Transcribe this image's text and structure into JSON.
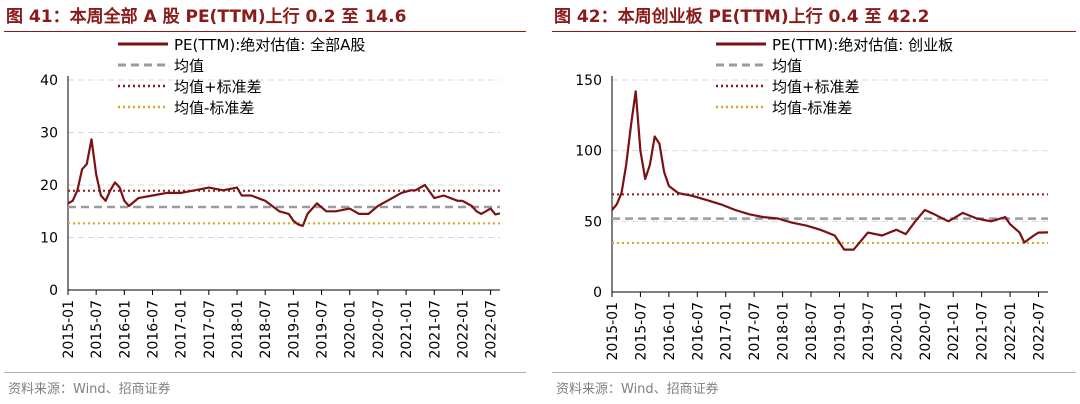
{
  "colors": {
    "pe_line": "#7b1113",
    "mean_line": "#9b9b9b",
    "plus_std_line": "#8b1a1a",
    "minus_std_line": "#d9a520",
    "grid": "#d9d9d9",
    "title": "#8b1a1a"
  },
  "charts": [
    {
      "title": "图 41：本周全部 A 股 PE(TTM)上行 0.2 至 14.6",
      "source": "资料来源：Wind、招商证券",
      "chart_data": {
        "type": "line",
        "title": "图 41：本周全部 A 股 PE(TTM)上行 0.2 至 14.6",
        "xlabel": "",
        "ylabel": "",
        "ylim": [
          0,
          40
        ],
        "yticks": [
          0,
          10,
          20,
          30,
          40
        ],
        "xlim": [
          "2015-01",
          "2022-09"
        ],
        "xticks": [
          "2015-01",
          "2015-07",
          "2016-01",
          "2016-07",
          "2017-01",
          "2017-07",
          "2018-01",
          "2018-07",
          "2019-01",
          "2019-07",
          "2020-01",
          "2020-07",
          "2021-01",
          "2021-07",
          "2022-01",
          "2022-07"
        ],
        "grid": "horizontal dashed",
        "legend_placement": "top",
        "series": [
          {
            "name": "PE(TTM):绝对估值: 全部A股",
            "style": "solid",
            "x": [
              "2015-01",
              "2015-02",
              "2015-03",
              "2015-04",
              "2015-05",
              "2015-06",
              "2015-07",
              "2015-08",
              "2015-09",
              "2015-10",
              "2015-11",
              "2015-12",
              "2016-01",
              "2016-02",
              "2016-04",
              "2016-07",
              "2016-10",
              "2017-01",
              "2017-04",
              "2017-07",
              "2017-10",
              "2018-01",
              "2018-02",
              "2018-04",
              "2018-07",
              "2018-10",
              "2018-12",
              "2019-01",
              "2019-02",
              "2019-03",
              "2019-04",
              "2019-06",
              "2019-08",
              "2019-10",
              "2020-01",
              "2020-03",
              "2020-05",
              "2020-07",
              "2020-09",
              "2020-12",
              "2021-02",
              "2021-03",
              "2021-05",
              "2021-07",
              "2021-09",
              "2021-12",
              "2022-01",
              "2022-03",
              "2022-04",
              "2022-05",
              "2022-07",
              "2022-08",
              "2022-09"
            ],
            "values": [
              16.5,
              17,
              19,
              23,
              24,
              28.7,
              22,
              18,
              17,
              19,
              20.5,
              19.5,
              17,
              16,
              17.5,
              18,
              18.5,
              18.5,
              19,
              19.5,
              19,
              19.5,
              18,
              18,
              17,
              15,
              14.5,
              13.2,
              12.5,
              12.2,
              14.5,
              16.5,
              15,
              15,
              15.5,
              14.5,
              14.5,
              16,
              17,
              18.5,
              19,
              19,
              20,
              17.5,
              18,
              17,
              17,
              16,
              15,
              14.5,
              15.5,
              14.4,
              14.6
            ]
          },
          {
            "name": "均值",
            "style": "dashed",
            "value": 15.8
          },
          {
            "name": "均值+标准差",
            "style": "dotted",
            "value": 18.9
          },
          {
            "name": "均值-标准差",
            "style": "dotted",
            "value": 12.7
          }
        ]
      }
    },
    {
      "title": "图 42：本周创业板 PE(TTM)上行 0.4 至 42.2",
      "source": "资料来源：Wind、招商证券",
      "chart_data": {
        "type": "line",
        "title": "图 42：本周创业板 PE(TTM)上行 0.4 至 42.2",
        "xlabel": "",
        "ylabel": "",
        "ylim": [
          0,
          150
        ],
        "yticks": [
          0,
          50,
          100,
          150
        ],
        "xlim": [
          "2015-01",
          "2022-09"
        ],
        "xticks": [
          "2015-01",
          "2015-07",
          "2016-01",
          "2016-07",
          "2017-01",
          "2017-07",
          "2018-01",
          "2018-07",
          "2019-01",
          "2019-07",
          "2020-01",
          "2020-07",
          "2021-01",
          "2021-07",
          "2022-01",
          "2022-07"
        ],
        "grid": "horizontal dashed",
        "legend_placement": "top",
        "series": [
          {
            "name": "PE(TTM):绝对估值: 创业板",
            "style": "solid",
            "x": [
              "2015-01",
              "2015-02",
              "2015-03",
              "2015-04",
              "2015-05",
              "2015-06",
              "2015-07",
              "2015-08",
              "2015-09",
              "2015-10",
              "2015-11",
              "2015-12",
              "2016-01",
              "2016-03",
              "2016-06",
              "2016-09",
              "2016-12",
              "2017-03",
              "2017-06",
              "2017-09",
              "2017-12",
              "2018-03",
              "2018-06",
              "2018-09",
              "2018-12",
              "2019-01",
              "2019-02",
              "2019-04",
              "2019-07",
              "2019-10",
              "2020-01",
              "2020-03",
              "2020-05",
              "2020-07",
              "2020-09",
              "2020-12",
              "2021-03",
              "2021-06",
              "2021-09",
              "2021-12",
              "2022-01",
              "2022-03",
              "2022-04",
              "2022-06",
              "2022-07",
              "2022-09"
            ],
            "values": [
              58,
              62,
              70,
              90,
              118,
              142,
              100,
              80,
              90,
              110,
              105,
              85,
              75,
              70,
              68,
              65,
              62,
              58,
              55,
              53,
              52,
              49,
              47,
              44,
              40,
              35,
              30,
              30,
              42,
              40,
              44,
              41,
              50,
              58,
              55,
              50,
              56,
              52,
              50,
              53,
              48,
              42,
              35,
              40,
              42,
              42.2
            ]
          },
          {
            "name": "均值",
            "style": "dashed",
            "value": 51.9
          },
          {
            "name": "均值+标准差",
            "style": "dotted",
            "value": 69.1
          },
          {
            "name": "均值-标准差",
            "style": "dotted",
            "value": 34.7
          }
        ]
      }
    }
  ]
}
